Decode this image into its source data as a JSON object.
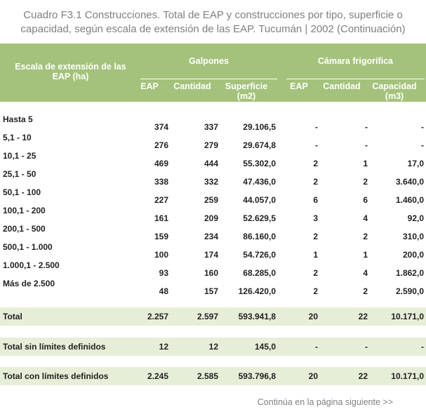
{
  "header": {
    "title": "Cuadro F3.1 Construcciones. Total de EAP y construcciones por tipo, superficie o capacidad, según escala de extensión de las EAP. Tucumán | 2002 (Continuación)"
  },
  "table": {
    "stub": "Escala de extensión de las EAP (ha)",
    "groups": [
      {
        "label": "Galpones",
        "columns": [
          "EAP",
          "Cantidad",
          "Superficie (m2)"
        ]
      },
      {
        "label": "Cámara frigorífica",
        "columns": [
          "EAP",
          "Cantidad",
          "Capacidad (m3)"
        ]
      }
    ],
    "rows": [
      [
        "Hasta 5",
        "374",
        "337",
        "29.106,5",
        "-",
        "-",
        "-"
      ],
      [
        "5,1 - 10",
        "276",
        "279",
        "29.674,8",
        "-",
        "-",
        "-"
      ],
      [
        "10,1 - 25",
        "469",
        "444",
        "55.302,0",
        "2",
        "1",
        "17,0"
      ],
      [
        "25,1 - 50",
        "338",
        "332",
        "47.436,0",
        "2",
        "2",
        "3.640,0"
      ],
      [
        "50,1 - 100",
        "227",
        "259",
        "44.057,0",
        "6",
        "6",
        "1.460,0"
      ],
      [
        "100,1 - 200",
        "161",
        "209",
        "52.629,5",
        "3",
        "4",
        "92,0"
      ],
      [
        "200,1 - 500",
        "159",
        "234",
        "86.160,0",
        "2",
        "2",
        "310,0"
      ],
      [
        "500,1 - 1.000",
        "100",
        "174",
        "54.726,0",
        "1",
        "1",
        "200,0"
      ],
      [
        "1.000,1 - 2.500",
        "93",
        "160",
        "68.285,0",
        "2",
        "4",
        "1.862,0"
      ],
      [
        "Más de 2.500",
        "48",
        "157",
        "126.420,0",
        "2",
        "2",
        "2.590,0"
      ]
    ],
    "totals": [
      [
        "Total",
        "2.257",
        "2.597",
        "593.941,8",
        "20",
        "22",
        "10.171,0"
      ],
      [
        "Total sin límites definidos",
        "12",
        "12",
        "145,0",
        "-",
        "-",
        "-"
      ],
      [
        "Total con límites definidos",
        "2.245",
        "2.585",
        "593.796,8",
        "20",
        "22",
        "10.171,0"
      ]
    ]
  },
  "footer": {
    "note": "Continúa en la página siguiente >>"
  }
}
